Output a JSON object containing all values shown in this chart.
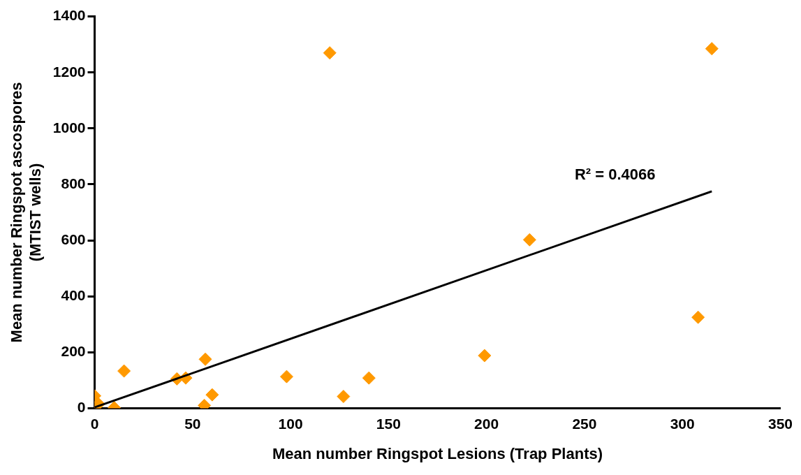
{
  "chart_data": {
    "type": "scatter",
    "xlabel": "Mean number Ringspot Lesions (Trap Plants)",
    "ylabel": "Mean number Ringspot ascospores\n(MTIST wells)",
    "xlim": [
      0,
      350
    ],
    "xticks": [
      0,
      50,
      100,
      150,
      200,
      250,
      300,
      350
    ],
    "ylim": [
      0,
      1400
    ],
    "yticks": [
      0,
      200,
      400,
      600,
      800,
      1000,
      1200,
      1400
    ],
    "grid": false,
    "legend": false,
    "marker": "diamond",
    "series": [
      {
        "type": "scatter",
        "color": "#ff9900",
        "x": [
          0,
          0,
          2,
          10,
          15,
          42,
          46.5,
          56.5,
          60,
          56,
          98,
          120,
          127,
          140,
          199,
          222,
          308,
          315
        ],
        "values": [
          44,
          0,
          15,
          2,
          133,
          105,
          108,
          175,
          48,
          10,
          113,
          1270,
          42,
          108,
          188,
          602,
          325,
          1285
        ]
      },
      {
        "type": "line",
        "color": "#000000",
        "marker": "none",
        "line_style": "solid",
        "x": [
          0,
          315
        ],
        "values": [
          3,
          775
        ]
      }
    ],
    "annotations": [
      "R² = 0.4066"
    ]
  }
}
